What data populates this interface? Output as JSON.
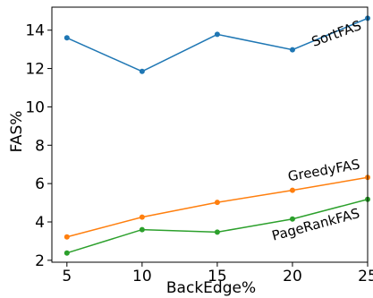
{
  "chart_data": {
    "type": "line",
    "title": "",
    "xlabel": "BackEdge%",
    "ylabel": "FAS%",
    "x": [
      5,
      10,
      15,
      20,
      25
    ],
    "xlim": [
      4,
      25
    ],
    "ylim": [
      1.9,
      15.2
    ],
    "xticks": [
      5,
      10,
      15,
      20,
      25
    ],
    "yticks": [
      2,
      4,
      6,
      8,
      10,
      12,
      14
    ],
    "grid": false,
    "legend": "none",
    "series": [
      {
        "name": "SortFAS",
        "values": [
          13.6,
          11.85,
          13.78,
          12.98,
          14.62
        ],
        "color": "#1f77b4",
        "label_rotation": -20
      },
      {
        "name": "GreedyFAS",
        "values": [
          3.22,
          4.25,
          5.02,
          5.65,
          6.32
        ],
        "color": "#ff7f0e",
        "label_rotation": -10
      },
      {
        "name": "PageRankFAS",
        "values": [
          2.38,
          3.6,
          3.47,
          4.15,
          5.18
        ],
        "color": "#2ca02c",
        "label_rotation": -15
      }
    ]
  }
}
